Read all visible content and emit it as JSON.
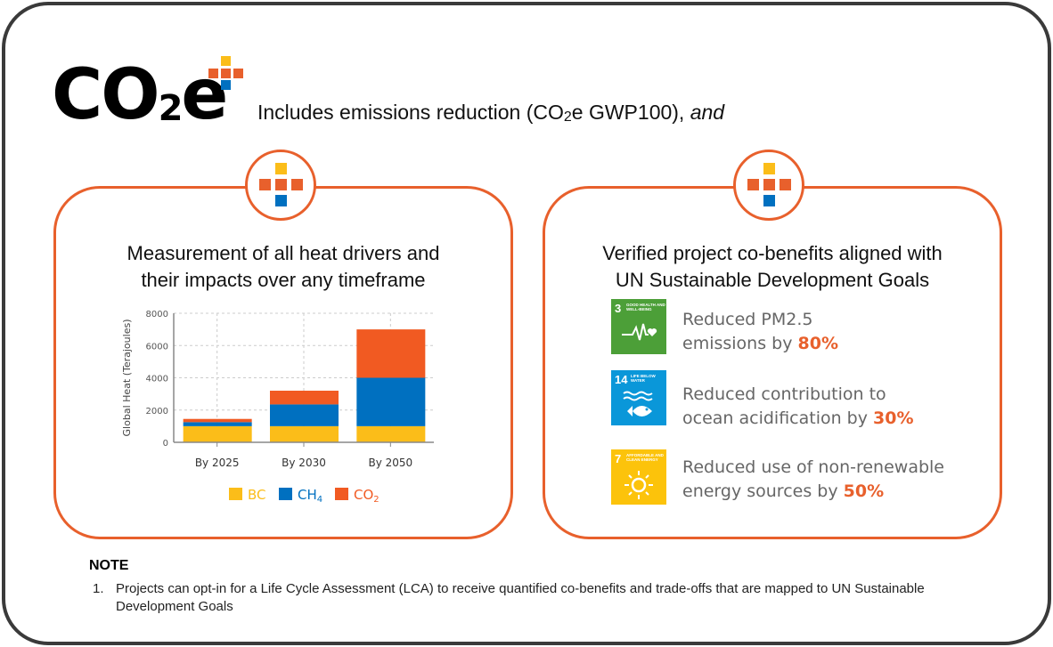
{
  "logo": {
    "text": "CO",
    "sub": "2",
    "suffix": "e"
  },
  "intro": {
    "text_pre": "Includes emissions reduction (CO",
    "text_sub": "2",
    "text_post": "e GWP100), ",
    "text_italic": "and"
  },
  "left_panel": {
    "title_line1": "Measurement of all heat drivers and",
    "title_line2": "their impacts over any timeframe"
  },
  "chart_data": {
    "type": "bar",
    "stacked": true,
    "categories": [
      "By 2025",
      "By 2030",
      "By 2050"
    ],
    "series": [
      {
        "name": "BC",
        "color": "#fbbd19",
        "values": [
          1000,
          1000,
          1000
        ]
      },
      {
        "name": "CH4",
        "color": "#0070c0",
        "values": [
          250,
          1350,
          3000
        ]
      },
      {
        "name": "CO2",
        "color": "#f15a22",
        "values": [
          200,
          850,
          3000
        ]
      }
    ],
    "ylabel": "Global Heat (Terajoules)",
    "ylim": [
      0,
      8000
    ],
    "yticks": [
      "0",
      "2000",
      "4000",
      "6000",
      "8000"
    ],
    "grid": true,
    "legend": "bottom",
    "legend_labels": {
      "bc": "BC",
      "ch4": "CH",
      "ch4_sub": "4",
      "co2": "CO",
      "co2_sub": "2"
    }
  },
  "right_panel": {
    "title_line1": "Verified project co-benefits aligned with",
    "title_line2": "UN Sustainable Development Goals",
    "items": [
      {
        "goal_number": "3",
        "goal_name": "GOOD HEALTH AND WELL-BEING",
        "color": "#4c9f38",
        "line1": "Reduced PM2.5",
        "line2": "emissions by ",
        "value": "80%"
      },
      {
        "goal_number": "14",
        "goal_name": "LIFE BELOW WATER",
        "color": "#0a97d9",
        "line1": "Reduced contribution to",
        "line2": "ocean acidification by ",
        "value": "30%"
      },
      {
        "goal_number": "7",
        "goal_name": "AFFORDABLE AND CLEAN ENERGY",
        "color": "#fcc30b",
        "line1": "Reduced use of non-renewable",
        "line2": "energy sources by ",
        "value": "50%"
      }
    ]
  },
  "note": {
    "heading": "NOTE",
    "items": [
      {
        "num": "1.",
        "text": "Projects can opt-in for a Life Cycle Assessment (LCA) to receive quantified co-benefits and trade-offs that are mapped to UN Sustainable Development Goals"
      }
    ]
  },
  "colors": {
    "orange": "#e8602c",
    "yellow": "#fbbd19",
    "blue": "#0070c0"
  }
}
